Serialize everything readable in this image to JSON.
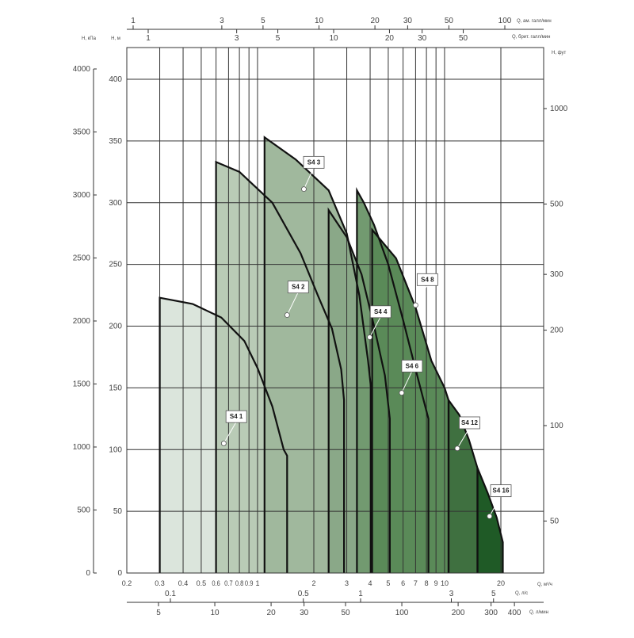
{
  "chart_data": {
    "type": "area",
    "x_scale": "log",
    "xlim": [
      0.2,
      25
    ],
    "ylim": [
      0,
      420
    ],
    "grid": true,
    "x_ticks": [
      0.2,
      0.3,
      0.4,
      0.5,
      0.6,
      0.7,
      0.8,
      0.9,
      1,
      2,
      3,
      4,
      5,
      6,
      7,
      8,
      9,
      10,
      20
    ],
    "x_tick_labels": [
      "0.2",
      "0.3",
      "0.4",
      "0.5",
      "0.6",
      "0.7",
      "0.8",
      "0.9",
      "1",
      "2",
      "3",
      "4",
      "5",
      "6",
      "7",
      "8",
      "9",
      "10",
      "20"
    ],
    "xlabel": "Q, м³/ч",
    "y_ticks": [
      0,
      50,
      100,
      150,
      200,
      250,
      300,
      350,
      400
    ],
    "ylabel": "H, м",
    "left_axis": {
      "label": "H, кПа",
      "ticks": [
        0,
        500,
        1000,
        1500,
        2000,
        2500,
        3000,
        3500,
        4000
      ]
    },
    "right_axis": {
      "label": "H, фут",
      "scale": "log",
      "ticks": [
        50,
        100,
        200,
        300,
        500,
        1000
      ]
    },
    "top_axis_us": {
      "label": "Q, ам. галл/мин",
      "ticks": [
        1,
        3,
        5,
        10,
        20,
        30,
        50,
        100
      ]
    },
    "top_axis_imp": {
      "label": "Q, брит. галл/мин",
      "ticks": [
        1,
        3,
        5,
        10,
        20,
        30,
        50
      ]
    },
    "bottom_axis_ls": {
      "label": "Q, л/с",
      "ticks": [
        0.1,
        0.5,
        1,
        3,
        5
      ]
    },
    "bottom_axis_lmin": {
      "label": "Q, л/мин",
      "ticks": [
        5,
        10,
        20,
        30,
        50,
        100,
        200,
        300,
        400
      ]
    },
    "series": [
      {
        "name": "S4 1",
        "color": "#dbe5dc",
        "points": [
          [
            0.3,
            0
          ],
          [
            0.3,
            223
          ],
          [
            0.45,
            218
          ],
          [
            0.64,
            207
          ],
          [
            0.85,
            188
          ],
          [
            1,
            166
          ],
          [
            1.2,
            135
          ],
          [
            1.38,
            100
          ],
          [
            1.44,
            95
          ],
          [
            1.44,
            0
          ]
        ],
        "marker": [
          0.66,
          105
        ],
        "label_at": [
          0.77,
          127
        ]
      },
      {
        "name": "S4 2",
        "color": "#b9cbb6",
        "points": [
          [
            0.6,
            0
          ],
          [
            0.6,
            333
          ],
          [
            0.8,
            325
          ],
          [
            1.2,
            300
          ],
          [
            1.7,
            259
          ],
          [
            2.1,
            225
          ],
          [
            2.5,
            198
          ],
          [
            2.8,
            165
          ],
          [
            2.9,
            140
          ],
          [
            2.9,
            0
          ]
        ],
        "marker": [
          1.44,
          209
        ],
        "label_at": [
          1.65,
          232
        ]
      },
      {
        "name": "S4 3",
        "color": "#a0b89d",
        "points": [
          [
            1.09,
            0
          ],
          [
            1.09,
            353
          ],
          [
            1.6,
            335
          ],
          [
            2.4,
            310
          ],
          [
            3,
            275
          ],
          [
            3.5,
            225
          ],
          [
            3.9,
            172
          ],
          [
            4.04,
            150
          ],
          [
            4.04,
            0
          ]
        ],
        "marker": [
          1.77,
          311
        ],
        "label_at": [
          2.0,
          333
        ]
      },
      {
        "name": "S4 4",
        "color": "#8aa888",
        "points": [
          [
            2.4,
            0
          ],
          [
            2.4,
            294
          ],
          [
            3,
            272
          ],
          [
            3.6,
            242
          ],
          [
            4.2,
            200
          ],
          [
            4.8,
            160
          ],
          [
            5.1,
            125
          ],
          [
            5.1,
            0
          ]
        ],
        "marker": [
          3.98,
          191
        ],
        "label_at": [
          4.55,
          212
        ]
      },
      {
        "name": "S4 6",
        "color": "#729a70",
        "points": [
          [
            3.4,
            0
          ],
          [
            3.4,
            310
          ],
          [
            3.7,
            300
          ],
          [
            4.2,
            282
          ],
          [
            5,
            250
          ],
          [
            6,
            205
          ],
          [
            7,
            165
          ],
          [
            8.2,
            125
          ],
          [
            8.2,
            0
          ]
        ],
        "marker": [
          5.9,
          146
        ],
        "label_at": [
          6.7,
          168
        ]
      },
      {
        "name": "S4 8",
        "color": "#5a8a58",
        "points": [
          [
            4.1,
            0
          ],
          [
            4.1,
            278
          ],
          [
            5.5,
            255
          ],
          [
            7,
            215
          ],
          [
            8.5,
            172
          ],
          [
            10,
            150
          ],
          [
            10.5,
            140
          ],
          [
            10.5,
            0
          ]
        ],
        "marker": [
          7.0,
          217
        ],
        "label_at": [
          8.1,
          238
        ]
      },
      {
        "name": "S4 12",
        "color": "#3f7040",
        "points": [
          [
            10.5,
            0
          ],
          [
            10.5,
            140
          ],
          [
            12,
            128
          ],
          [
            13.5,
            108
          ],
          [
            15,
            85
          ],
          [
            15,
            0
          ]
        ],
        "marker": [
          11.7,
          101
        ],
        "label_at": [
          13.6,
          122
        ]
      },
      {
        "name": "S4 16",
        "color": "#1f5a26",
        "points": [
          [
            15,
            0
          ],
          [
            15,
            85
          ],
          [
            17,
            65
          ],
          [
            19,
            45
          ],
          [
            20.5,
            25
          ],
          [
            20.5,
            0
          ]
        ],
        "marker": [
          17.4,
          46
        ],
        "label_at": [
          20,
          67
        ]
      }
    ]
  }
}
